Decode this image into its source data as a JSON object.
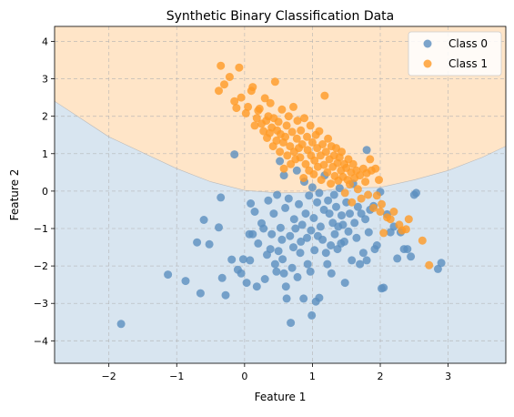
{
  "chart_data": {
    "type": "scatter",
    "title": "Synthetic Binary Classification Data",
    "xlabel": "Feature 1",
    "ylabel": "Feature 2",
    "xlim": [
      -2.8,
      3.85
    ],
    "ylim": [
      -4.6,
      4.4
    ],
    "xticks": [
      -2,
      -1,
      0,
      1,
      2,
      3
    ],
    "yticks": [
      -4,
      -3,
      -2,
      -1,
      0,
      1,
      2,
      3,
      4
    ],
    "grid": true,
    "legend_position": "top-right",
    "decision_boundary": {
      "description": "upward-opening curve; region above is predicted Class 1, region below Class 0",
      "x": [
        -2.8,
        -2.0,
        -1.0,
        -0.5,
        0.0,
        0.5,
        0.8,
        1.0,
        1.5,
        2.0,
        2.5,
        3.0,
        3.5,
        3.85
      ],
      "y": [
        2.4,
        1.45,
        0.6,
        0.25,
        0.02,
        -0.05,
        -0.04,
        -0.02,
        0.08,
        0.1,
        0.3,
        0.55,
        0.9,
        1.2
      ],
      "colors": {
        "class1_region": "#ffe5c8",
        "class0_region": "#d8e5f0",
        "edge": "#bbbbbb"
      }
    },
    "series": [
      {
        "name": "Class 0",
        "color": "#5b8fbf",
        "points": [
          [
            -1.82,
            -3.55
          ],
          [
            -1.13,
            -2.23
          ],
          [
            -0.87,
            -2.4
          ],
          [
            -0.7,
            -1.37
          ],
          [
            -0.65,
            -2.73
          ],
          [
            -0.6,
            -0.77
          ],
          [
            -0.52,
            -1.42
          ],
          [
            -0.38,
            -0.97
          ],
          [
            -0.35,
            -0.17
          ],
          [
            -0.33,
            -2.32
          ],
          [
            -0.28,
            -2.78
          ],
          [
            -0.19,
            -1.83
          ],
          [
            -0.15,
            0.98
          ],
          [
            -0.1,
            -2.1
          ],
          [
            -0.05,
            -2.2
          ],
          [
            -0.02,
            -1.82
          ],
          [
            0.03,
            -2.45
          ],
          [
            0.07,
            -1.15
          ],
          [
            0.08,
            -1.85
          ],
          [
            0.09,
            -0.33
          ],
          [
            0.12,
            -1.15
          ],
          [
            0.15,
            -0.55
          ],
          [
            0.18,
            -2.55
          ],
          [
            0.2,
            -1.4
          ],
          [
            0.25,
            -0.86
          ],
          [
            0.28,
            -1.0
          ],
          [
            0.3,
            -2.35
          ],
          [
            0.33,
            -1.7
          ],
          [
            0.35,
            -0.25
          ],
          [
            0.38,
            -1.55
          ],
          [
            0.4,
            -1.15
          ],
          [
            0.43,
            -0.6
          ],
          [
            0.45,
            -1.95
          ],
          [
            0.47,
            -2.15
          ],
          [
            0.48,
            -0.1
          ],
          [
            0.5,
            -1.6
          ],
          [
            0.52,
            0.8
          ],
          [
            0.53,
            -0.98
          ],
          [
            0.55,
            -1.3
          ],
          [
            0.56,
            -1.82
          ],
          [
            0.58,
            -2.2
          ],
          [
            0.58,
            0.42
          ],
          [
            0.6,
            -0.45
          ],
          [
            0.61,
            -2.55
          ],
          [
            0.62,
            -2.87
          ],
          [
            0.65,
            -0.2
          ],
          [
            0.67,
            -1.2
          ],
          [
            0.68,
            -3.52
          ],
          [
            0.7,
            -2.05
          ],
          [
            0.72,
            -1.5
          ],
          [
            0.73,
            -0.75
          ],
          [
            0.75,
            -1.0
          ],
          [
            0.77,
            0.55
          ],
          [
            0.78,
            -2.3
          ],
          [
            0.8,
            -0.35
          ],
          [
            0.82,
            -1.65
          ],
          [
            0.83,
            -1.35
          ],
          [
            0.85,
            -0.9
          ],
          [
            0.87,
            -2.87
          ],
          [
            0.88,
            0.25
          ],
          [
            0.9,
            -0.6
          ],
          [
            0.92,
            -1.25
          ],
          [
            0.93,
            -1.95
          ],
          [
            0.95,
            -0.12
          ],
          [
            0.97,
            -2.15
          ],
          [
            0.98,
            -1.05
          ],
          [
            0.99,
            -3.32
          ],
          [
            1.0,
            0.1
          ],
          [
            1.02,
            -0.72
          ],
          [
            1.03,
            -1.58
          ],
          [
            1.05,
            -2.95
          ],
          [
            1.07,
            -0.3
          ],
          [
            1.08,
            -1.2
          ],
          [
            1.1,
            -0.05
          ],
          [
            1.1,
            -2.85
          ],
          [
            1.12,
            -0.95
          ],
          [
            1.15,
            -1.3
          ],
          [
            1.17,
            -0.5
          ],
          [
            1.18,
            0.42
          ],
          [
            1.2,
            -1.65
          ],
          [
            1.22,
            -1.95
          ],
          [
            1.23,
            -0.25
          ],
          [
            1.25,
            -0.6
          ],
          [
            1.27,
            -1.45
          ],
          [
            1.28,
            -2.2
          ],
          [
            1.3,
            -0.85
          ],
          [
            1.32,
            -0.1
          ],
          [
            1.33,
            -1.15
          ],
          [
            1.35,
            -0.42
          ],
          [
            1.37,
            -1.55
          ],
          [
            1.38,
            -0.95
          ],
          [
            1.4,
            0.08
          ],
          [
            1.42,
            -1.4
          ],
          [
            1.43,
            -0.65
          ],
          [
            1.45,
            -0.9
          ],
          [
            1.47,
            -1.35
          ],
          [
            1.48,
            -2.45
          ],
          [
            1.5,
            -0.3
          ],
          [
            1.53,
            -1.08
          ],
          [
            1.55,
            -0.6
          ],
          [
            1.58,
            -1.85
          ],
          [
            1.6,
            0.2
          ],
          [
            1.62,
            -0.85
          ],
          [
            1.65,
            -1.25
          ],
          [
            1.67,
            -0.42
          ],
          [
            1.7,
            -1.95
          ],
          [
            1.72,
            -0.6
          ],
          [
            1.75,
            -1.65
          ],
          [
            1.78,
            -0.75
          ],
          [
            1.8,
            1.1
          ],
          [
            1.8,
            -1.85
          ],
          [
            1.83,
            -1.1
          ],
          [
            1.85,
            -0.5
          ],
          [
            1.9,
            -0.4
          ],
          [
            1.92,
            -1.55
          ],
          [
            1.95,
            -1.45
          ],
          [
            2.0,
            -0.02
          ],
          [
            2.02,
            -2.6
          ],
          [
            2.05,
            -2.58
          ],
          [
            2.1,
            -0.62
          ],
          [
            2.15,
            -1.1
          ],
          [
            2.2,
            -0.95
          ],
          [
            2.25,
            -1.8
          ],
          [
            2.3,
            -1.1
          ],
          [
            2.35,
            -1.55
          ],
          [
            2.4,
            -1.55
          ],
          [
            2.45,
            -1.75
          ],
          [
            2.5,
            -0.1
          ],
          [
            2.53,
            -0.05
          ],
          [
            2.85,
            -2.08
          ],
          [
            2.9,
            -1.92
          ]
        ]
      },
      {
        "name": "Class 1",
        "color": "#ff9a26",
        "points": [
          [
            -0.38,
            2.68
          ],
          [
            -0.35,
            3.35
          ],
          [
            -0.3,
            2.85
          ],
          [
            -0.22,
            3.05
          ],
          [
            -0.15,
            2.4
          ],
          [
            -0.12,
            2.22
          ],
          [
            -0.08,
            3.3
          ],
          [
            -0.05,
            2.5
          ],
          [
            0.02,
            2.08
          ],
          [
            0.05,
            2.25
          ],
          [
            0.1,
            2.68
          ],
          [
            0.12,
            2.78
          ],
          [
            0.15,
            1.75
          ],
          [
            0.18,
            1.95
          ],
          [
            0.2,
            2.15
          ],
          [
            0.22,
            2.2
          ],
          [
            0.25,
            1.8
          ],
          [
            0.28,
            1.6
          ],
          [
            0.3,
            2.48
          ],
          [
            0.32,
            1.88
          ],
          [
            0.33,
            1.42
          ],
          [
            0.35,
            2.0
          ],
          [
            0.37,
            1.55
          ],
          [
            0.38,
            2.35
          ],
          [
            0.4,
            1.7
          ],
          [
            0.42,
            1.2
          ],
          [
            0.43,
            1.95
          ],
          [
            0.45,
            2.92
          ],
          [
            0.47,
            1.35
          ],
          [
            0.48,
            1.62
          ],
          [
            0.5,
            1.85
          ],
          [
            0.52,
            1.05
          ],
          [
            0.53,
            1.52
          ],
          [
            0.55,
            2.18
          ],
          [
            0.57,
            1.3
          ],
          [
            0.58,
            0.6
          ],
          [
            0.6,
            1.45
          ],
          [
            0.62,
            1.75
          ],
          [
            0.63,
            0.95
          ],
          [
            0.65,
            2.0
          ],
          [
            0.67,
            1.2
          ],
          [
            0.68,
            0.72
          ],
          [
            0.7,
            1.58
          ],
          [
            0.72,
            2.25
          ],
          [
            0.73,
            1.05
          ],
          [
            0.75,
            0.85
          ],
          [
            0.77,
            1.4
          ],
          [
            0.78,
            1.88
          ],
          [
            0.8,
            1.15
          ],
          [
            0.82,
            0.9
          ],
          [
            0.83,
            1.62
          ],
          [
            0.85,
            1.25
          ],
          [
            0.87,
            0.35
          ],
          [
            0.88,
            1.95
          ],
          [
            0.9,
            0.72
          ],
          [
            0.92,
            1.45
          ],
          [
            0.93,
            1.1
          ],
          [
            0.95,
            0.55
          ],
          [
            0.97,
            1.75
          ],
          [
            0.98,
            0.95
          ],
          [
            1.0,
            1.3
          ],
          [
            1.02,
            0.45
          ],
          [
            1.03,
            0.82
          ],
          [
            1.05,
            1.5
          ],
          [
            1.07,
            1.15
          ],
          [
            1.08,
            0.65
          ],
          [
            1.1,
            1.6
          ],
          [
            1.12,
            0.95
          ],
          [
            1.13,
            0.3
          ],
          [
            1.15,
            1.25
          ],
          [
            1.17,
            0.7
          ],
          [
            1.18,
            2.55
          ],
          [
            1.2,
            1.05
          ],
          [
            1.22,
            0.5
          ],
          [
            1.23,
            1.4
          ],
          [
            1.25,
            0.85
          ],
          [
            1.27,
            0.2
          ],
          [
            1.28,
            1.2
          ],
          [
            1.3,
            0.65
          ],
          [
            1.32,
            0.95
          ],
          [
            1.33,
            0.4
          ],
          [
            1.35,
            1.15
          ],
          [
            1.37,
            0.75
          ],
          [
            1.38,
            0.28
          ],
          [
            1.4,
            0.9
          ],
          [
            1.42,
            0.55
          ],
          [
            1.43,
            1.05
          ],
          [
            1.45,
            0.38
          ],
          [
            1.47,
            0.72
          ],
          [
            1.48,
            -0.05
          ],
          [
            1.5,
            0.62
          ],
          [
            1.52,
            0.3
          ],
          [
            1.53,
            0.85
          ],
          [
            1.55,
            0.18
          ],
          [
            1.57,
            0.5
          ],
          [
            1.58,
            -0.3
          ],
          [
            1.6,
            0.72
          ],
          [
            1.62,
            0.35
          ],
          [
            1.65,
            0.55
          ],
          [
            1.67,
            0.05
          ],
          [
            1.7,
            0.42
          ],
          [
            1.72,
            -0.2
          ],
          [
            1.75,
            0.6
          ],
          [
            1.78,
            0.25
          ],
          [
            1.8,
            0.48
          ],
          [
            1.82,
            -0.1
          ],
          [
            1.85,
            0.85
          ],
          [
            1.87,
            0.55
          ],
          [
            1.9,
            -0.45
          ],
          [
            1.93,
            0.6
          ],
          [
            1.95,
            -0.12
          ],
          [
            1.98,
            0.3
          ],
          [
            2.0,
            -0.55
          ],
          [
            2.02,
            -0.35
          ],
          [
            2.05,
            -1.12
          ],
          [
            2.1,
            -0.7
          ],
          [
            2.15,
            -0.75
          ],
          [
            2.2,
            -0.55
          ],
          [
            2.28,
            -0.9
          ],
          [
            2.32,
            -1.05
          ],
          [
            2.38,
            -1.02
          ],
          [
            2.42,
            -0.75
          ],
          [
            2.62,
            -1.32
          ],
          [
            2.72,
            -1.98
          ]
        ]
      }
    ]
  }
}
